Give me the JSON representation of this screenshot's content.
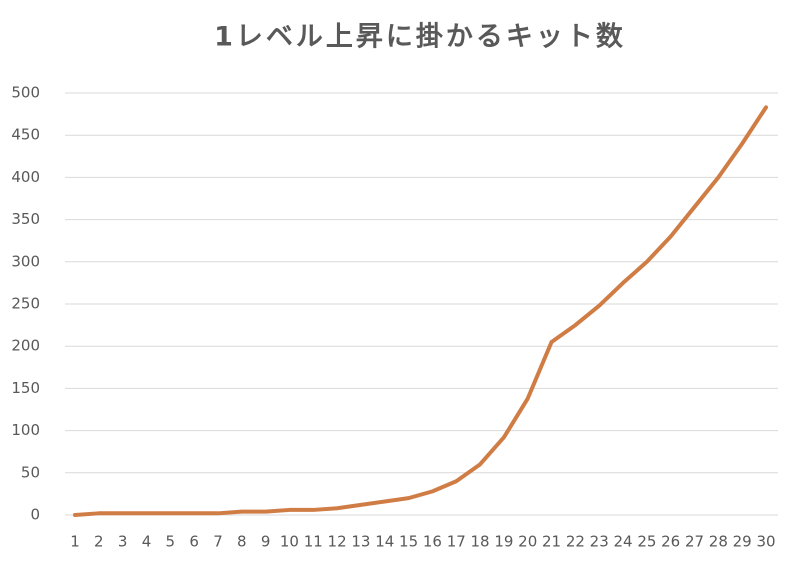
{
  "chart_data": {
    "type": "line",
    "title": "1レベル上昇に掛かるキット数",
    "categories": [
      "1",
      "2",
      "3",
      "4",
      "5",
      "6",
      "7",
      "8",
      "9",
      "10",
      "11",
      "12",
      "13",
      "14",
      "15",
      "16",
      "17",
      "18",
      "19",
      "20",
      "21",
      "22",
      "23",
      "24",
      "25",
      "26",
      "27",
      "28",
      "29",
      "30"
    ],
    "series": [
      {
        "name": "キット数",
        "color": "#d07c45",
        "values": [
          0,
          2,
          2,
          2,
          2,
          2,
          2,
          4,
          4,
          6,
          6,
          8,
          12,
          16,
          20,
          28,
          40,
          60,
          92,
          138,
          205,
          225,
          248,
          275,
          300,
          330,
          365,
          400,
          440,
          483
        ]
      }
    ],
    "ylim": [
      0,
      500
    ],
    "yticks": [
      0,
      50,
      100,
      150,
      200,
      250,
      300,
      350,
      400,
      450,
      500
    ],
    "grid": true
  }
}
